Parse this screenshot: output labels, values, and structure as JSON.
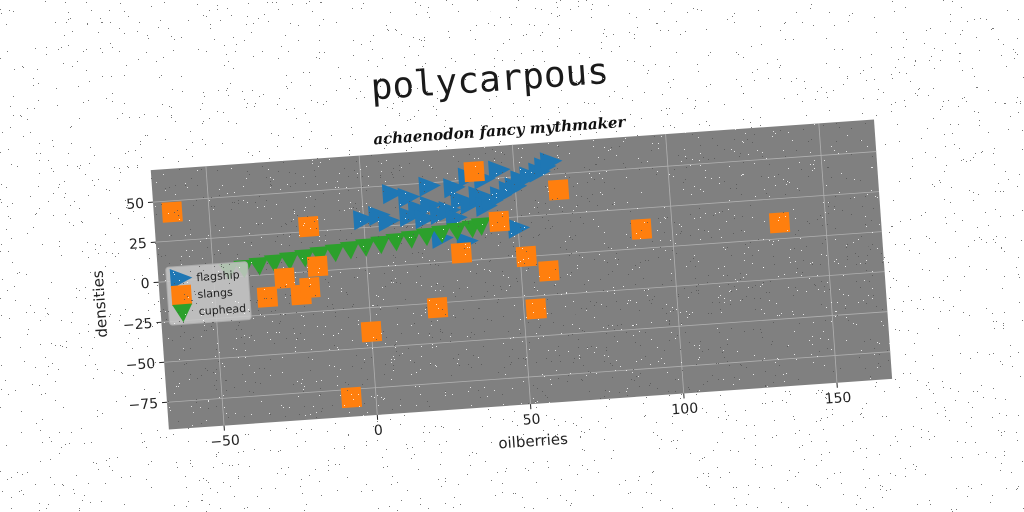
{
  "chart_data": {
    "type": "scatter",
    "title": "polycarpous",
    "subtitle": "achaenodon fancy mythmaker",
    "xlabel": "oilberries",
    "ylabel": "densities",
    "xlim": [
      -68,
      168
    ],
    "ylim": [
      -92,
      70
    ],
    "xticks": [
      -50,
      0,
      50,
      100,
      150
    ],
    "yticks": [
      -75,
      -50,
      -25,
      0,
      25,
      50
    ],
    "grid": true,
    "legend_position": "center-left",
    "rotation_deg": -4,
    "colors": {
      "plot_bg": "#808080",
      "flagship": "#1f77b4",
      "slangs": "#ff7f0e",
      "cuphead": "#2ca02c"
    },
    "series": [
      {
        "name": "flagship",
        "marker": "triangle-right",
        "x": [
          0,
          5,
          8,
          15,
          18,
          20,
          22,
          25,
          28,
          30,
          32,
          35,
          38,
          40,
          42,
          45,
          48,
          50,
          52,
          55,
          58,
          60,
          62,
          10,
          15,
          22,
          30,
          35,
          40,
          45,
          25,
          33,
          50
        ],
        "y": [
          30,
          32,
          28,
          30,
          34,
          28,
          36,
          30,
          32,
          27,
          38,
          35,
          40,
          33,
          36,
          39,
          42,
          44,
          48,
          50,
          52,
          55,
          58,
          45,
          42,
          48,
          46,
          52,
          50,
          55,
          15,
          12,
          18
        ]
      },
      {
        "name": "slangs",
        "marker": "square",
        "x": [
          -62,
          -33,
          -27,
          -22,
          -19,
          -18,
          -16,
          -8,
          0,
          22,
          31,
          37,
          44,
          52,
          54,
          59,
          64,
          90,
          135
        ],
        "y": [
          43,
          -14,
          -3,
          -14,
          -10,
          28,
          3,
          -80,
          -40,
          -28,
          5,
          55,
          23,
          0,
          -33,
          -10,
          40,
          12,
          10
        ],
        "x2": [],
        "y2": []
      },
      {
        "name": "cuphead",
        "marker": "triangle-down",
        "x": [
          -45,
          -40,
          -35,
          -30,
          -25,
          -20,
          -15,
          -10,
          -5,
          0,
          5,
          10,
          15,
          20,
          25,
          30,
          35,
          38
        ],
        "y": [
          4,
          5,
          6,
          7,
          8,
          9,
          10,
          11,
          12,
          13,
          14,
          15,
          16,
          17,
          18,
          19,
          20,
          21
        ]
      }
    ]
  }
}
